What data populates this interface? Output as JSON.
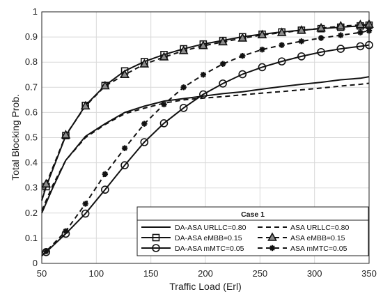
{
  "chart_data": {
    "type": "line",
    "title": "",
    "xlabel": "Traffic Load (Erl)",
    "ylabel": "Total Blocking Prob.",
    "xlim": [
      50,
      350
    ],
    "ylim": [
      0,
      1
    ],
    "xticks": [
      "50",
      "100",
      "150",
      "200",
      "250",
      "300",
      "350"
    ],
    "yticks": [
      "0",
      "0.1",
      "0.2",
      "0.3",
      "0.4",
      "0.5",
      "0.6",
      "0.7",
      "0.8",
      "0.9",
      "1"
    ],
    "grid": true,
    "legend": {
      "title": "Case 1",
      "placement": "bottom-right"
    },
    "series": [
      {
        "name": "DA-ASA URLLC=0.80",
        "line": "solid",
        "marker": "none",
        "x": [
          50,
          60,
          72,
          90,
          108,
          126,
          144,
          162,
          180,
          198,
          216,
          234,
          252,
          270,
          288,
          306,
          324,
          342,
          350
        ],
        "y": [
          0.2,
          0.3,
          0.41,
          0.505,
          0.555,
          0.6,
          0.625,
          0.645,
          0.655,
          0.665,
          0.675,
          0.682,
          0.693,
          0.703,
          0.712,
          0.72,
          0.73,
          0.736,
          0.742
        ]
      },
      {
        "name": "ASA URLLC=0.80",
        "line": "dashed",
        "marker": "none",
        "x": [
          50,
          60,
          72,
          90,
          108,
          126,
          144,
          162,
          180,
          198,
          216,
          234,
          252,
          270,
          288,
          306,
          324,
          342,
          350
        ],
        "y": [
          0.21,
          0.31,
          0.41,
          0.5,
          0.552,
          0.595,
          0.617,
          0.637,
          0.65,
          0.657,
          0.663,
          0.67,
          0.677,
          0.683,
          0.69,
          0.697,
          0.705,
          0.712,
          0.716
        ]
      },
      {
        "name": "DA-ASA eMBB=0.15",
        "line": "solid",
        "marker": "square",
        "x": [
          50,
          54,
          72,
          90,
          108,
          126,
          144,
          162,
          180,
          198,
          216,
          234,
          252,
          270,
          288,
          306,
          324,
          342,
          350
        ],
        "y": [
          0.25,
          0.305,
          0.508,
          0.628,
          0.707,
          0.765,
          0.802,
          0.83,
          0.853,
          0.872,
          0.886,
          0.901,
          0.911,
          0.92,
          0.927,
          0.933,
          0.939,
          0.944,
          0.947
        ]
      },
      {
        "name": "ASA eMBB=0.15",
        "line": "dashed",
        "marker": "triangle",
        "x": [
          50,
          54,
          72,
          90,
          108,
          126,
          144,
          162,
          180,
          198,
          216,
          234,
          252,
          270,
          288,
          306,
          324,
          342,
          350
        ],
        "y": [
          0.25,
          0.315,
          0.51,
          0.625,
          0.705,
          0.75,
          0.792,
          0.82,
          0.845,
          0.865,
          0.88,
          0.895,
          0.908,
          0.917,
          0.926,
          0.935,
          0.943,
          0.948,
          0.95
        ]
      },
      {
        "name": "DA-ASA mMTC=0.05",
        "line": "solid",
        "marker": "circle",
        "x": [
          50,
          54,
          72,
          90,
          108,
          126,
          144,
          162,
          180,
          198,
          216,
          234,
          252,
          270,
          288,
          306,
          324,
          342,
          350
        ],
        "y": [
          0.03,
          0.045,
          0.118,
          0.198,
          0.293,
          0.39,
          0.482,
          0.557,
          0.618,
          0.672,
          0.715,
          0.752,
          0.78,
          0.803,
          0.823,
          0.84,
          0.853,
          0.863,
          0.868
        ]
      },
      {
        "name": "ASA mMTC=0.05",
        "line": "dashed",
        "marker": "star",
        "x": [
          50,
          54,
          72,
          90,
          108,
          126,
          144,
          162,
          180,
          198,
          216,
          234,
          252,
          270,
          288,
          306,
          324,
          342,
          350
        ],
        "y": [
          0.03,
          0.048,
          0.128,
          0.237,
          0.355,
          0.458,
          0.555,
          0.632,
          0.7,
          0.75,
          0.793,
          0.825,
          0.85,
          0.868,
          0.883,
          0.896,
          0.907,
          0.918,
          0.925
        ]
      }
    ]
  }
}
